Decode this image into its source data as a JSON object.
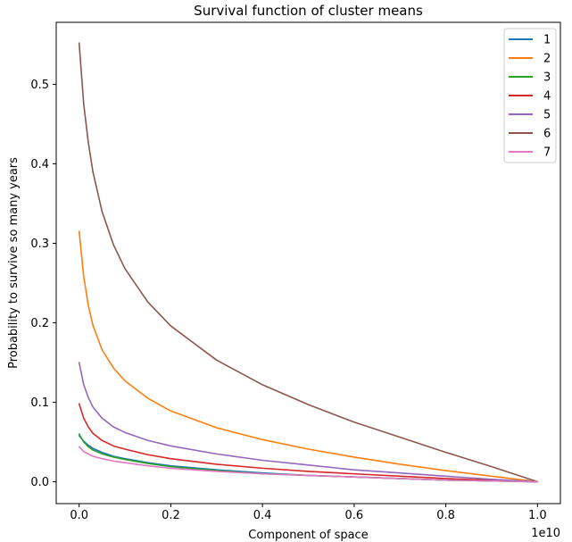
{
  "chart_data": {
    "type": "line",
    "title": "Survival function of cluster means",
    "xlabel": "Component of space",
    "ylabel": "Probability to survive so many years",
    "x_offset_label": "1e10",
    "xlim": [
      -0.05,
      1.05
    ],
    "ylim": [
      -0.0275,
      0.578
    ],
    "xticks": [
      0.0,
      0.2,
      0.4,
      0.6,
      0.8,
      1.0
    ],
    "xtick_labels": [
      "0.0",
      "0.2",
      "0.4",
      "0.6",
      "0.8",
      "1.0"
    ],
    "yticks": [
      0.0,
      0.1,
      0.2,
      0.3,
      0.4,
      0.5
    ],
    "ytick_labels": [
      "0.0",
      "0.1",
      "0.2",
      "0.3",
      "0.4",
      "0.5"
    ],
    "grid": false,
    "legend_position": "top-right",
    "x": [
      0.0,
      0.01,
      0.02,
      0.03,
      0.05,
      0.075,
      0.1,
      0.15,
      0.2,
      0.3,
      0.4,
      0.5,
      0.6,
      0.7,
      0.8,
      0.9,
      1.0
    ],
    "series": [
      {
        "name": "1",
        "color": "#1f77b4",
        "values": [
          0.058,
          0.051,
          0.046,
          0.042,
          0.037,
          0.032,
          0.029,
          0.024,
          0.02,
          0.015,
          0.011,
          0.008,
          0.006,
          0.004,
          0.002,
          0.001,
          0.0
        ]
      },
      {
        "name": "2",
        "color": "#ff7f0e",
        "values": [
          0.315,
          0.258,
          0.222,
          0.197,
          0.166,
          0.143,
          0.127,
          0.105,
          0.089,
          0.068,
          0.053,
          0.041,
          0.031,
          0.022,
          0.014,
          0.007,
          0.0
        ]
      },
      {
        "name": "3",
        "color": "#2ca02c",
        "values": [
          0.06,
          0.05,
          0.044,
          0.04,
          0.035,
          0.031,
          0.028,
          0.023,
          0.019,
          0.014,
          0.01,
          0.008,
          0.006,
          0.004,
          0.002,
          0.001,
          0.0
        ]
      },
      {
        "name": "4",
        "color": "#d62728",
        "values": [
          0.098,
          0.08,
          0.069,
          0.061,
          0.052,
          0.045,
          0.041,
          0.034,
          0.029,
          0.022,
          0.017,
          0.013,
          0.01,
          0.007,
          0.004,
          0.002,
          0.0
        ]
      },
      {
        "name": "5",
        "color": "#9467bd",
        "values": [
          0.15,
          0.122,
          0.106,
          0.094,
          0.08,
          0.069,
          0.062,
          0.052,
          0.045,
          0.035,
          0.027,
          0.021,
          0.015,
          0.011,
          0.007,
          0.003,
          0.0
        ]
      },
      {
        "name": "6",
        "color": "#8c564b",
        "values": [
          0.552,
          0.475,
          0.427,
          0.39,
          0.34,
          0.298,
          0.268,
          0.226,
          0.196,
          0.153,
          0.122,
          0.097,
          0.075,
          0.056,
          0.037,
          0.019,
          0.0
        ]
      },
      {
        "name": "7",
        "color": "#e377c2",
        "values": [
          0.044,
          0.038,
          0.035,
          0.032,
          0.029,
          0.026,
          0.024,
          0.02,
          0.017,
          0.013,
          0.01,
          0.008,
          0.006,
          0.004,
          0.002,
          0.001,
          0.0
        ]
      }
    ]
  }
}
